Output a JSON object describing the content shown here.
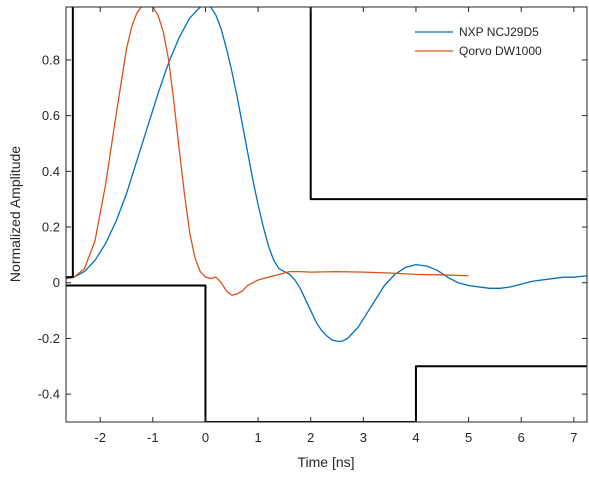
{
  "chart_data": {
    "type": "line",
    "xlabel": "Time [ns]",
    "ylabel": "Normalized Amplitude",
    "xlim": [
      -2.65,
      7.25
    ],
    "ylim": [
      -0.5,
      0.99
    ],
    "grid": false,
    "legend_location": "top-right",
    "x_ticks": [
      -2,
      -1,
      0,
      1,
      2,
      3,
      4,
      5,
      6,
      7
    ],
    "x_tick_labels": [
      "-2",
      "-1",
      "0",
      "1",
      "2",
      "3",
      "4",
      "5",
      "6",
      "7"
    ],
    "y_ticks": [
      -0.4,
      -0.2,
      0,
      0.2,
      0.4,
      0.6,
      0.8
    ],
    "y_tick_labels": [
      "-0.4",
      "-0.2",
      "0",
      "0.2",
      "0.4",
      "0.6",
      "0.8"
    ],
    "series": [
      {
        "name": "NXP NCJ29D5",
        "color": "#0072BD",
        "x": [
          -2.65,
          -2.5,
          -2.3,
          -2.1,
          -1.9,
          -1.7,
          -1.5,
          -1.3,
          -1.1,
          -0.9,
          -0.7,
          -0.5,
          -0.3,
          -0.1,
          0.0,
          0.1,
          0.2,
          0.3,
          0.4,
          0.5,
          0.6,
          0.7,
          0.8,
          0.9,
          1.0,
          1.1,
          1.2,
          1.3,
          1.4,
          1.5,
          1.6,
          1.7,
          1.8,
          1.9,
          2.0,
          2.1,
          2.2,
          2.3,
          2.4,
          2.5,
          2.6,
          2.7,
          2.8,
          2.9,
          3.0,
          3.2,
          3.4,
          3.6,
          3.8,
          4.0,
          4.2,
          4.4,
          4.6,
          4.8,
          5.0,
          5.2,
          5.4,
          5.6,
          5.8,
          6.0,
          6.2,
          6.4,
          6.6,
          6.8,
          7.0,
          7.25
        ],
        "y": [
          0.015,
          0.02,
          0.04,
          0.08,
          0.14,
          0.22,
          0.32,
          0.44,
          0.56,
          0.68,
          0.79,
          0.88,
          0.95,
          0.99,
          1.0,
          0.99,
          0.96,
          0.91,
          0.84,
          0.76,
          0.67,
          0.57,
          0.47,
          0.37,
          0.28,
          0.2,
          0.13,
          0.08,
          0.05,
          0.04,
          0.03,
          0.01,
          -0.02,
          -0.06,
          -0.1,
          -0.14,
          -0.17,
          -0.19,
          -0.205,
          -0.21,
          -0.21,
          -0.2,
          -0.18,
          -0.16,
          -0.13,
          -0.07,
          -0.01,
          0.03,
          0.055,
          0.065,
          0.06,
          0.045,
          0.02,
          0.0,
          -0.01,
          -0.015,
          -0.02,
          -0.02,
          -0.015,
          -0.005,
          0.005,
          0.01,
          0.015,
          0.02,
          0.02,
          0.025
        ]
      },
      {
        "name": "Qorvo DW1000",
        "color": "#D95319",
        "x": [
          -2.65,
          -2.5,
          -2.3,
          -2.1,
          -1.9,
          -1.7,
          -1.5,
          -1.4,
          -1.3,
          -1.2,
          -1.1,
          -1.0,
          -0.9,
          -0.8,
          -0.7,
          -0.6,
          -0.5,
          -0.4,
          -0.3,
          -0.2,
          -0.1,
          0.0,
          0.1,
          0.2,
          0.3,
          0.4,
          0.5,
          0.6,
          0.7,
          0.8,
          1.0,
          1.2,
          1.4,
          1.6,
          1.8,
          2.0,
          2.5,
          3.0,
          3.5,
          4.0,
          4.5,
          5.0
        ],
        "y": [
          0.015,
          0.02,
          0.05,
          0.15,
          0.35,
          0.6,
          0.84,
          0.92,
          0.97,
          0.995,
          1.0,
          0.99,
          0.96,
          0.9,
          0.8,
          0.65,
          0.48,
          0.32,
          0.18,
          0.09,
          0.04,
          0.02,
          0.015,
          0.02,
          0.0,
          -0.03,
          -0.045,
          -0.04,
          -0.03,
          -0.01,
          0.01,
          0.02,
          0.03,
          0.04,
          0.04,
          0.038,
          0.04,
          0.038,
          0.035,
          0.03,
          0.028,
          0.025
        ]
      },
      {
        "name": "",
        "color": "#000000",
        "x": [
          -2.65,
          -2.52,
          -2.52,
          2.0,
          2.0,
          7.25
        ],
        "y": [
          0.02,
          0.02,
          1.2,
          1.2,
          0.3,
          0.3
        ]
      },
      {
        "name": "",
        "color": "#000000",
        "x": [
          -2.65,
          0.0,
          0.0,
          4.0,
          4.0,
          7.25
        ],
        "y": [
          -0.01,
          -0.01,
          -0.5,
          -0.5,
          -0.3,
          -0.3
        ]
      }
    ],
    "legend": [
      {
        "label": "NXP NCJ29D5",
        "color": "#0072BD"
      },
      {
        "label": "Qorvo DW1000",
        "color": "#D95319"
      }
    ]
  }
}
